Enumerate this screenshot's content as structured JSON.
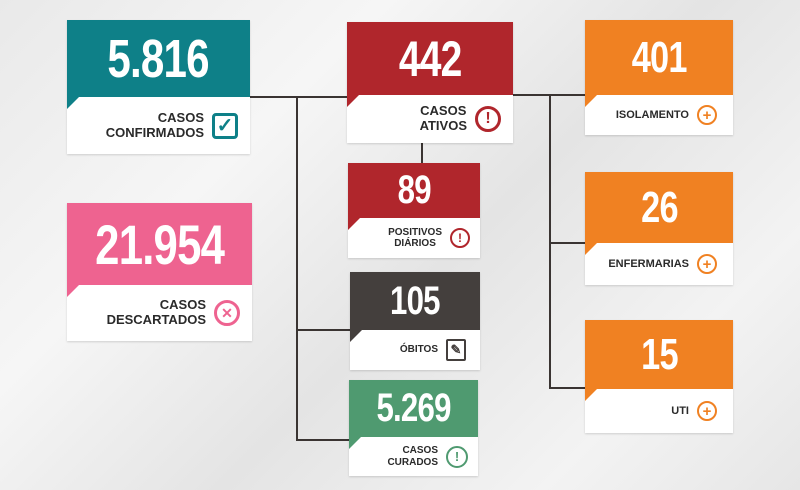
{
  "colors": {
    "teal": "#0e8088",
    "pink": "#ee6390",
    "red": "#b0262c",
    "dark": "#443f3d",
    "green": "#4f9a70",
    "orange": "#f08122"
  },
  "cards": {
    "confirmados": {
      "value": "5.816",
      "label1": "CASOS",
      "label2": "CONFIRMADOS",
      "icon": "check-square-icon"
    },
    "descartados": {
      "value": "21.954",
      "label1": "CASOS",
      "label2": "DESCARTADOS",
      "icon": "x-circle-icon"
    },
    "ativos": {
      "value": "442",
      "label1": "CASOS",
      "label2": "ATIVOS",
      "icon": "exclamation-circle-icon"
    },
    "positivos": {
      "value": "89",
      "label1": "POSITIVOS",
      "label2": "DIÁRIOS",
      "icon": "exclamation-circle-icon"
    },
    "obitos": {
      "value": "105",
      "label1": "ÓBITOS",
      "icon": "document-edit-icon"
    },
    "curados": {
      "value": "5.269",
      "label1": "CASOS",
      "label2": "CURADOS",
      "icon": "exclamation-circle-icon"
    },
    "isolamento": {
      "value": "401",
      "label1": "ISOLAMENTO",
      "icon": "plus-circle-icon"
    },
    "enfermarias": {
      "value": "26",
      "label1": "ENFERMARIAS",
      "icon": "plus-circle-icon"
    },
    "uti": {
      "value": "15",
      "label1": "UTI",
      "icon": "plus-circle-icon"
    }
  },
  "icons": {
    "check": "✓",
    "x": "✕",
    "excl": "!",
    "plus": "+",
    "edit": "✎"
  }
}
